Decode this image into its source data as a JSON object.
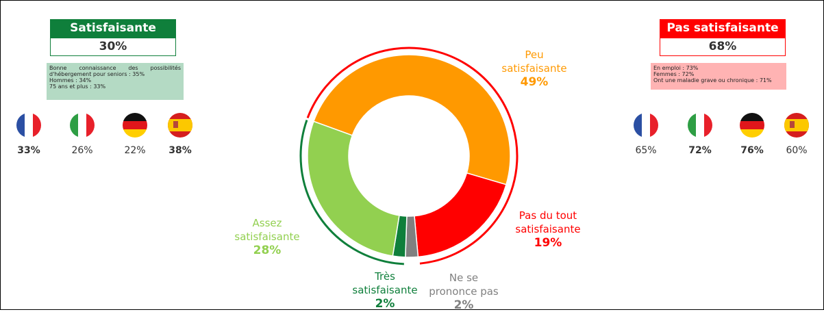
{
  "chart_data": {
    "type": "donut",
    "categories": [
      "Peu satisfaisante",
      "Pas du tout satisfaisante",
      "Ne se prononce pas",
      "Très satisfaisante",
      "Assez satisfaisante"
    ],
    "values": [
      49,
      19,
      2,
      2,
      28
    ],
    "value_labels": [
      "49%",
      "19%",
      "2%",
      "2%",
      "28%"
    ],
    "colors": [
      "#ff9900",
      "#ff0000",
      "#808080",
      "#0f7f3b",
      "#92d050"
    ]
  },
  "panels": [
    {
      "title": "Satisfaisante",
      "value": "30%",
      "color": "#0f7f3b",
      "notes": [
        "Bonne connaissance des possibilités d'hébergement pour seniors : 35%",
        "Hommes : 34%",
        "75 ans et plus : 33%"
      ],
      "countries": [
        "33%",
        "26%",
        "22%",
        "38%"
      ]
    },
    {
      "title": "Pas satisfaisante",
      "value": "68%",
      "color": "#ff0000",
      "notes": [
        "En emploi : 73%",
        "Femmes : 72%",
        "Ont une maladie grave ou chronique : 71%"
      ],
      "countries": [
        "65%",
        "72%",
        "76%",
        "60%"
      ]
    }
  ]
}
